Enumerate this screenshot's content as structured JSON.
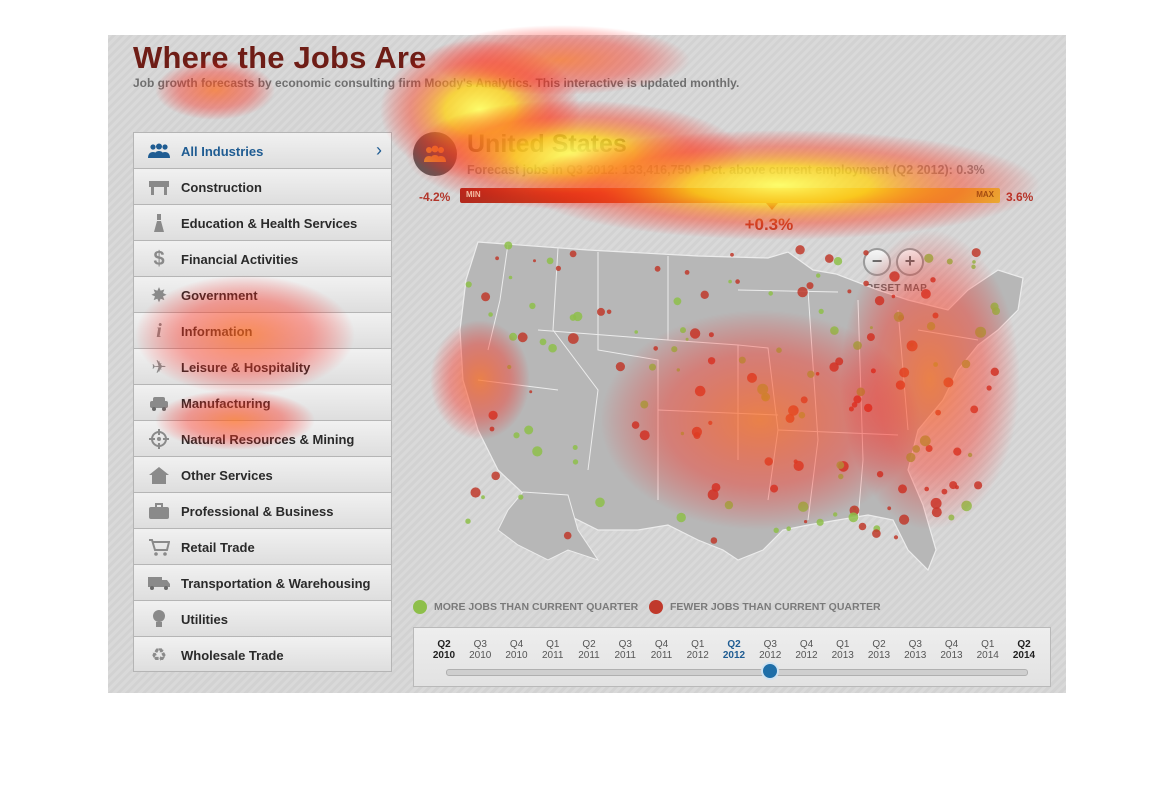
{
  "header": {
    "title": "Where the Jobs Are",
    "subtitle": "Job growth forecasts by economic consulting firm Moody's Analytics. This interactive is updated monthly."
  },
  "sidebar": {
    "items": [
      {
        "label": "All Industries",
        "icon": "people-icon",
        "active": true
      },
      {
        "label": "Construction",
        "icon": "barrier-icon"
      },
      {
        "label": "Education & Health Services",
        "icon": "bottle-icon"
      },
      {
        "label": "Financial Activities",
        "icon": "dollar-icon"
      },
      {
        "label": "Government",
        "icon": "star-badge-icon"
      },
      {
        "label": "Information",
        "icon": "info-icon"
      },
      {
        "label": "Leisure & Hospitality",
        "icon": "airplane-icon"
      },
      {
        "label": "Manufacturing",
        "icon": "car-icon"
      },
      {
        "label": "Natural Resources & Mining",
        "icon": "crosshair-icon"
      },
      {
        "label": "Other Services",
        "icon": "house-icon"
      },
      {
        "label": "Professional & Business",
        "icon": "briefcase-icon"
      },
      {
        "label": "Retail Trade",
        "icon": "cart-icon"
      },
      {
        "label": "Transportation & Warehousing",
        "icon": "truck-icon"
      },
      {
        "label": "Utilities",
        "icon": "lightbulb-icon"
      },
      {
        "label": "Wholesale Trade",
        "icon": "recycle-icon"
      }
    ]
  },
  "region": {
    "name": "United States",
    "stats": "Forecast jobs in Q3 2012: 133,416,750 • Pct. above current employment (Q2 2012): 0.3%"
  },
  "scale": {
    "min_value": "-4.2%",
    "max_value": "3.6%",
    "min_tag": "MIN",
    "max_tag": "MAX",
    "current": "+0.3%",
    "current_fraction": 0.577
  },
  "zoom": {
    "minus": "−",
    "plus": "+",
    "reset": "RESET MAP"
  },
  "legend": {
    "more": {
      "label": "MORE JOBS THAN CURRENT QUARTER",
      "color": "#8ebf4a"
    },
    "fewer": {
      "label": "FEWER JOBS THAN CURRENT QUARTER",
      "color": "#c0392b"
    }
  },
  "timeline": {
    "ticks": [
      {
        "q": "Q2",
        "y": "2010"
      },
      {
        "q": "Q3",
        "y": "2010"
      },
      {
        "q": "Q4",
        "y": "2010"
      },
      {
        "q": "Q1",
        "y": "2011"
      },
      {
        "q": "Q2",
        "y": "2011"
      },
      {
        "q": "Q3",
        "y": "2011"
      },
      {
        "q": "Q4",
        "y": "2011"
      },
      {
        "q": "Q1",
        "y": "2012"
      },
      {
        "q": "Q2",
        "y": "2012"
      },
      {
        "q": "Q3",
        "y": "2012"
      },
      {
        "q": "Q4",
        "y": "2012"
      },
      {
        "q": "Q1",
        "y": "2013"
      },
      {
        "q": "Q2",
        "y": "2013"
      },
      {
        "q": "Q3",
        "y": "2013"
      },
      {
        "q": "Q4",
        "y": "2013"
      },
      {
        "q": "Q1",
        "y": "2014"
      },
      {
        "q": "Q2",
        "y": "2014"
      }
    ],
    "active_index": 8,
    "selected_index": 9
  },
  "colors": {
    "title": "#6e1d16",
    "accent_blue": "#1f5c92",
    "more_jobs": "#8ebf4a",
    "fewer_jobs": "#c0392b"
  }
}
